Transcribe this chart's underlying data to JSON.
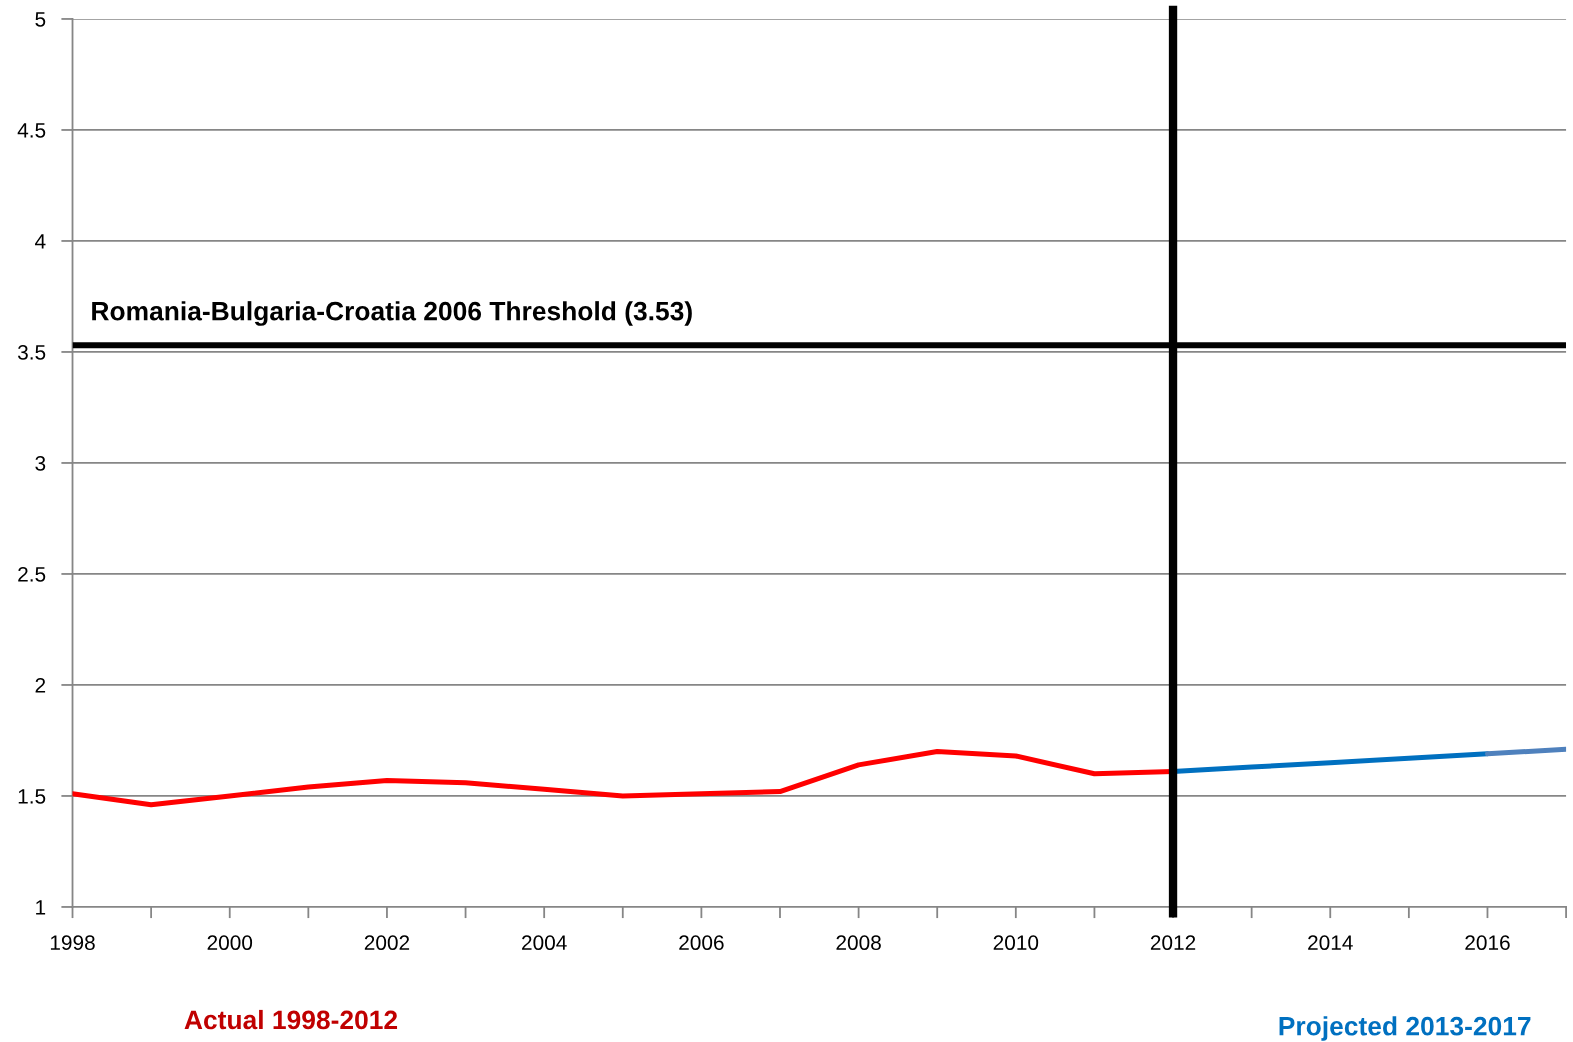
{
  "chart_data": {
    "type": "line",
    "annotations": [
      "Actual 1998-2012",
      "Projected 2013-2017"
    ],
    "series": [
      {
        "color": "#ff0000",
        "x": [
          1998,
          1999,
          2000,
          2001,
          2002,
          2003,
          2004,
          2005,
          2006,
          2007,
          2008,
          2009,
          2010,
          2011,
          2012
        ],
        "values": [
          1.51,
          1.46,
          1.5,
          1.54,
          1.57,
          1.56,
          1.53,
          1.5,
          1.51,
          1.52,
          1.64,
          1.7,
          1.68,
          1.6,
          1.61
        ]
      },
      {
        "color": "#0070c0",
        "x": [
          2012,
          2013,
          2014,
          2015,
          2016
        ],
        "values": [
          1.61,
          1.63,
          1.65,
          1.67,
          1.69
        ]
      },
      {
        "color": "#4f81bd",
        "x": [
          2016,
          2017
        ],
        "values": [
          1.69,
          1.71
        ]
      }
    ],
    "xlim": [
      1998,
      2017
    ],
    "xticks": [
      1998,
      {
        "value": 1999,
        "label": null
      },
      2000,
      {
        "value": 2001,
        "label": null
      },
      2002,
      {
        "value": 2003,
        "label": null
      },
      2004,
      {
        "value": 2005,
        "label": null
      },
      2006,
      {
        "value": 2007,
        "label": null
      },
      2008,
      {
        "value": 2009,
        "label": null
      },
      2010,
      {
        "value": 2011,
        "label": null
      },
      2012,
      {
        "value": 2013,
        "label": null
      },
      2014,
      {
        "value": 2015,
        "label": null
      },
      2016,
      {
        "value": 2017,
        "label": null
      }
    ],
    "ylim": [
      1,
      5
    ],
    "yticks": [
      1,
      1.5,
      2,
      2.5,
      3,
      3.5,
      4,
      4.5,
      5
    ],
    "ref_lines": [
      {
        "axis": "y",
        "value": 3.53,
        "label": "Romania-Bulgaria-Croatia 2006 Threshold (3.53)",
        "color": "#000000"
      },
      {
        "axis": "x",
        "value": 2012,
        "color": "#000000"
      }
    ],
    "grid": "y"
  }
}
